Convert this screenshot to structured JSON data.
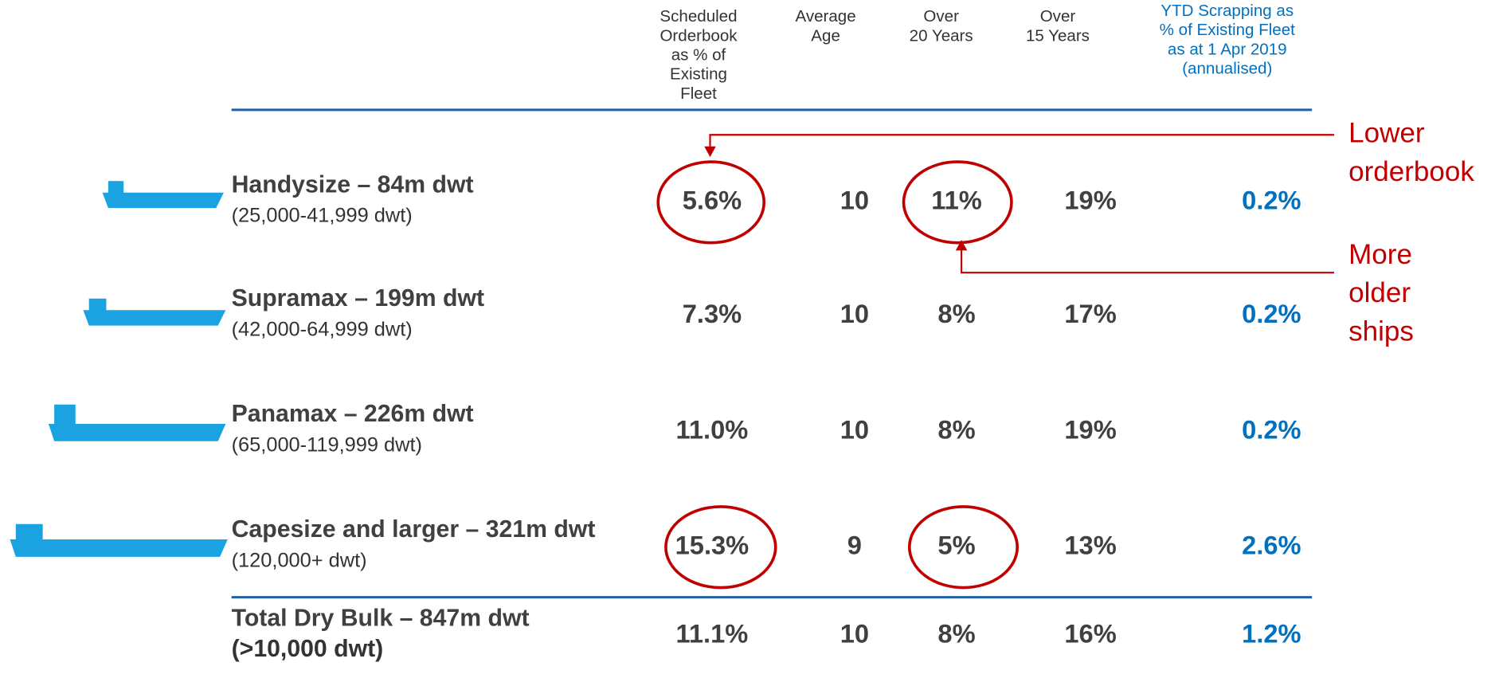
{
  "table": {
    "headers": [
      [
        "Scheduled",
        "Orderbook",
        "as % of",
        "Existing",
        "Fleet"
      ],
      [
        "Average",
        "Age"
      ],
      [
        "Over",
        "20 Years"
      ],
      [
        "Over",
        "15 Years"
      ],
      [
        "YTD Scrapping as",
        "% of Existing Fleet",
        "as at 1 Apr 2019",
        "(annualised)"
      ]
    ],
    "rows": [
      {
        "name": "Handysize – 84m dwt",
        "range": "(25,000-41,999 dwt)",
        "cells": [
          "5.6%",
          "10",
          "11%",
          "19%",
          "0.2%"
        ]
      },
      {
        "name": "Supramax – 199m dwt",
        "range": "(42,000-64,999 dwt)",
        "cells": [
          "7.3%",
          "10",
          "8%",
          "17%",
          "0.2%"
        ]
      },
      {
        "name": "Panamax – 226m dwt",
        "range": "(65,000-119,999 dwt)",
        "cells": [
          "11.0%",
          "10",
          "8%",
          "19%",
          "0.2%"
        ]
      },
      {
        "name": "Capesize and larger – 321m dwt",
        "range": "(120,000+ dwt)",
        "cells": [
          "15.3%",
          "9",
          "5%",
          "13%",
          "2.6%"
        ]
      }
    ],
    "total": {
      "name": "Total Dry Bulk – 847m dwt",
      "range": "(>10,000 dwt)",
      "cells": [
        "11.1%",
        "10",
        "8%",
        "16%",
        "1.2%"
      ]
    }
  },
  "annotations": [
    {
      "lines": [
        "Lower",
        "orderbook"
      ]
    },
    {
      "lines": [
        "More",
        "older",
        "ships"
      ]
    }
  ]
}
